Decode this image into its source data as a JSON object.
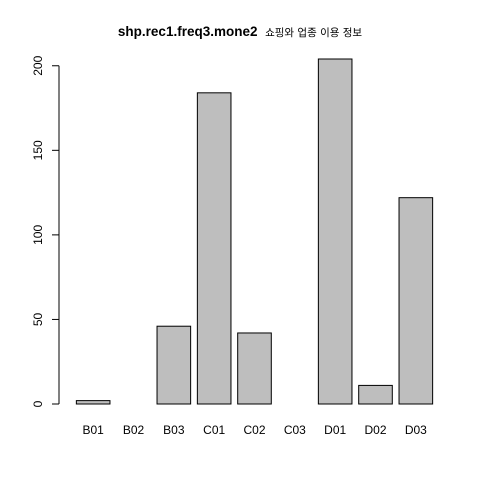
{
  "chart_data": {
    "type": "bar",
    "title": "shp.rec1.freq3.mone2",
    "subtitle": "쇼핑와 업종 이용 정보",
    "xlabel": "",
    "ylabel": "",
    "categories": [
      "B01",
      "B02",
      "B03",
      "C01",
      "C02",
      "C03",
      "D01",
      "D02",
      "D03"
    ],
    "values": [
      2,
      0,
      46,
      184,
      42,
      0,
      204,
      11,
      122
    ],
    "yticks": [
      0,
      50,
      100,
      150,
      200
    ],
    "ylim": [
      0,
      204
    ],
    "grid": false,
    "legend": "none",
    "colors": {
      "bar_fill": "#bebebe",
      "bar_stroke": "#000000",
      "axis": "#000000"
    }
  }
}
